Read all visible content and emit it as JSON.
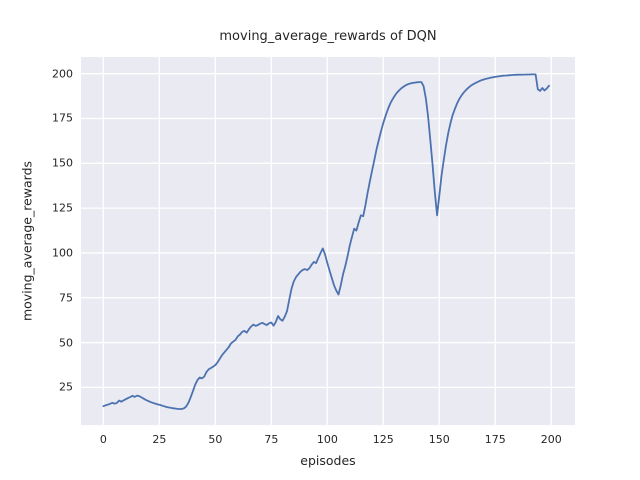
{
  "figure": {
    "title": "moving_average_rewards of DQN"
  },
  "chart_data": {
    "type": "line",
    "title": "moving_average_rewards of DQN",
    "xlabel": "episodes",
    "ylabel": "moving_average_rewards",
    "xlim": [
      -10,
      210.6
    ],
    "ylim": [
      4,
      209.3
    ],
    "xticks": [
      0,
      25,
      50,
      75,
      100,
      125,
      150,
      175,
      200
    ],
    "yticks": [
      25,
      50,
      75,
      100,
      125,
      150,
      175,
      200
    ],
    "grid": true,
    "legend": "none",
    "style": "seaborn-darkgrid",
    "colors": {
      "line": "#4C72B0",
      "plot_background": "#EAEAF2",
      "gridline": "#FFFFFF",
      "text": "#262626",
      "figure_background": "#FFFFFF"
    },
    "series": [
      {
        "name": "moving_average_rewards",
        "x_start": 0,
        "x_step": 1,
        "values": [
          14.5,
          15.0,
          15.4,
          15.8,
          16.4,
          15.9,
          16.3,
          17.6,
          17.0,
          17.7,
          18.4,
          19.0,
          19.6,
          20.3,
          19.7,
          20.4,
          20.1,
          19.4,
          18.7,
          18.0,
          17.4,
          16.9,
          16.4,
          16.0,
          15.6,
          15.3,
          14.9,
          14.5,
          14.1,
          13.8,
          13.6,
          13.4,
          13.2,
          13.0,
          12.9,
          12.9,
          13.3,
          14.3,
          16.5,
          19.5,
          23.0,
          26.5,
          29.0,
          30.5,
          30.0,
          31.0,
          33.5,
          35.0,
          35.8,
          36.5,
          37.5,
          39.0,
          41.0,
          43.0,
          44.5,
          46.0,
          47.5,
          49.5,
          50.5,
          51.5,
          53.5,
          54.5,
          56.0,
          56.5,
          55.5,
          57.5,
          59.0,
          60.0,
          59.3,
          59.8,
          60.5,
          61.0,
          60.3,
          59.8,
          60.8,
          61.2,
          59.4,
          61.5,
          64.8,
          63.0,
          62.2,
          64.5,
          67.5,
          74.0,
          80.0,
          84.0,
          86.5,
          88.0,
          89.5,
          90.5,
          91.0,
          90.4,
          91.5,
          93.5,
          95.0,
          94.3,
          97.3,
          100.0,
          102.5,
          99.0,
          94.5,
          90.0,
          86.0,
          82.0,
          79.0,
          76.8,
          82.0,
          88.0,
          92.5,
          98.0,
          104.0,
          109.0,
          113.5,
          112.5,
          117.0,
          121.0,
          120.5,
          126.5,
          133.5,
          140.0,
          146.0,
          152.0,
          158.0,
          163.0,
          168.0,
          172.5,
          176.5,
          180.0,
          183.0,
          185.5,
          187.5,
          189.2,
          190.6,
          191.8,
          192.7,
          193.5,
          194.1,
          194.5,
          194.8,
          195.0,
          195.2,
          195.3,
          195.3,
          193.0,
          186.0,
          176.0,
          163.0,
          149.0,
          134.0,
          121.0,
          132.0,
          143.0,
          152.0,
          160.0,
          167.0,
          172.5,
          177.0,
          180.5,
          183.5,
          186.0,
          188.0,
          189.6,
          191.0,
          192.2,
          193.2,
          194.0,
          194.7,
          195.3,
          195.9,
          196.4,
          196.8,
          197.2,
          197.5,
          197.8,
          198.0,
          198.2,
          198.4,
          198.6,
          198.8,
          198.9,
          199.0,
          199.1,
          199.2,
          199.3,
          199.35,
          199.4,
          199.45,
          199.5,
          199.5,
          199.55,
          199.55,
          199.6,
          199.6,
          199.6,
          191.3,
          190.4,
          192.0,
          190.6,
          191.8,
          193.3
        ]
      }
    ]
  }
}
